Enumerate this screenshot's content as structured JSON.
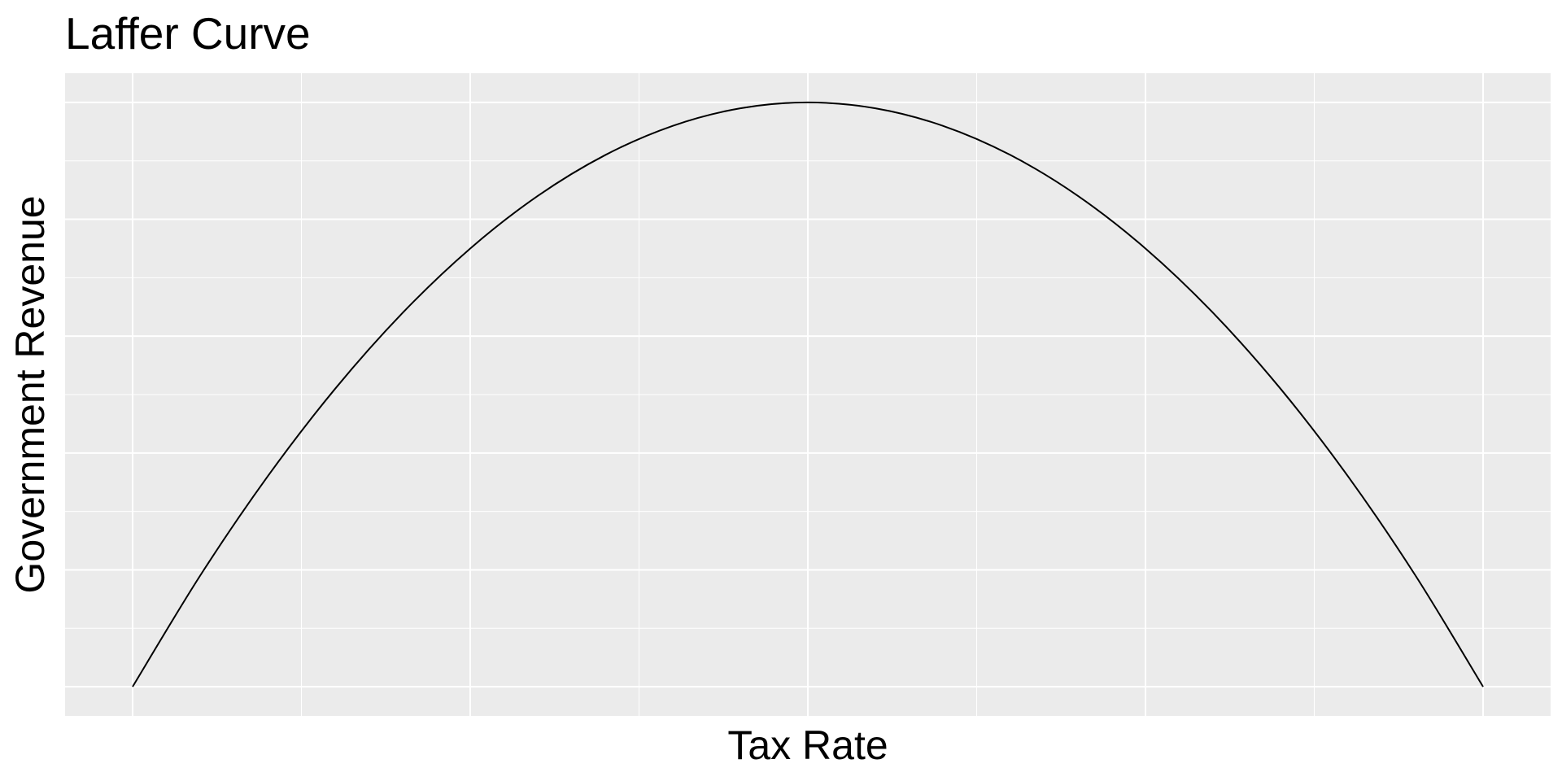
{
  "chart_data": {
    "type": "line",
    "title": "Laffer Curve",
    "xlabel": "Tax Rate",
    "ylabel": "Government Revenue",
    "x_tick_labels_shown": false,
    "y_tick_labels_shown": false,
    "xlim": [
      -0.05,
      1.05
    ],
    "ylim": [
      -0.05,
      1.05
    ],
    "grid": true,
    "legend": "none",
    "panel_background": "#EBEBEB",
    "grid_color": "#FFFFFF",
    "series": [
      {
        "color": "#000000",
        "x": [
          0,
          0.05,
          0.1,
          0.15,
          0.2,
          0.25,
          0.3,
          0.35,
          0.4,
          0.45,
          0.5,
          0.55,
          0.6,
          0.65,
          0.7,
          0.75,
          0.8,
          0.85,
          0.9,
          0.95,
          1
        ],
        "y": [
          0,
          0.19,
          0.36,
          0.51,
          0.64,
          0.75,
          0.84,
          0.91,
          0.96,
          0.99,
          1,
          0.99,
          0.96,
          0.91,
          0.84,
          0.75,
          0.64,
          0.51,
          0.36,
          0.19,
          0
        ]
      }
    ]
  }
}
